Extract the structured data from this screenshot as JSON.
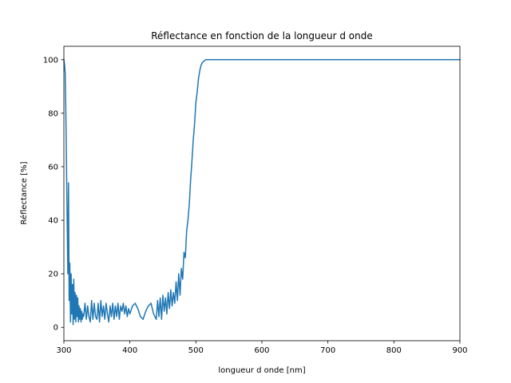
{
  "chart_data": {
    "type": "line",
    "title": "Réflectance en fonction de la longueur d onde",
    "xlabel": "longueur d onde [nm]",
    "ylabel": "Réflectance [%]",
    "xlim": [
      300,
      900
    ],
    "ylim": [
      -5,
      105
    ],
    "xticks": [
      300,
      400,
      500,
      600,
      700,
      800,
      900
    ],
    "yticks": [
      0,
      20,
      40,
      60,
      80,
      100
    ],
    "grid": false,
    "legend": "none",
    "series": [
      {
        "color": "#1f77b4",
        "x": [
          300,
          301,
          302,
          303,
          304,
          305,
          306,
          307,
          308,
          309,
          310,
          311,
          312,
          313,
          314,
          315,
          316,
          317,
          318,
          319,
          320,
          321,
          322,
          323,
          324,
          325,
          326,
          327,
          328,
          329,
          330,
          332,
          334,
          336,
          338,
          340,
          342,
          344,
          346,
          348,
          350,
          352,
          354,
          356,
          358,
          360,
          362,
          364,
          366,
          368,
          370,
          372,
          374,
          376,
          378,
          380,
          382,
          384,
          386,
          388,
          390,
          392,
          394,
          396,
          398,
          400,
          404,
          408,
          412,
          416,
          420,
          424,
          428,
          432,
          436,
          440,
          442,
          444,
          446,
          448,
          450,
          452,
          454,
          456,
          458,
          460,
          462,
          464,
          466,
          468,
          470,
          472,
          474,
          476,
          478,
          480,
          482,
          484,
          486,
          488,
          490,
          492,
          494,
          496,
          498,
          500,
          502,
          504,
          506,
          508,
          510,
          515,
          520,
          530,
          550,
          600,
          700,
          800,
          900
        ],
        "y": [
          100,
          98,
          95,
          80,
          60,
          40,
          20,
          54,
          10,
          24,
          2,
          20,
          5,
          16,
          1,
          18,
          3,
          13,
          2,
          12,
          4,
          11,
          2,
          8,
          3,
          7,
          2,
          6,
          3,
          5,
          4,
          9,
          3,
          8,
          4,
          2,
          10,
          3,
          9,
          4,
          3,
          9,
          2,
          10,
          4,
          8,
          3,
          9,
          5,
          2,
          8,
          4,
          9,
          3,
          8,
          4,
          9,
          3,
          8,
          6,
          9,
          5,
          8,
          4,
          7,
          5,
          8,
          9,
          7,
          4,
          3,
          6,
          8,
          9,
          5,
          3,
          10,
          4,
          11,
          3,
          12,
          6,
          11,
          5,
          13,
          7,
          14,
          8,
          13,
          9,
          17,
          10,
          20,
          12,
          22,
          18,
          28,
          26,
          36,
          40,
          46,
          55,
          62,
          70,
          76,
          84,
          88,
          93,
          96,
          98,
          99,
          100,
          100,
          100,
          100,
          100,
          100,
          100,
          100
        ]
      }
    ]
  }
}
